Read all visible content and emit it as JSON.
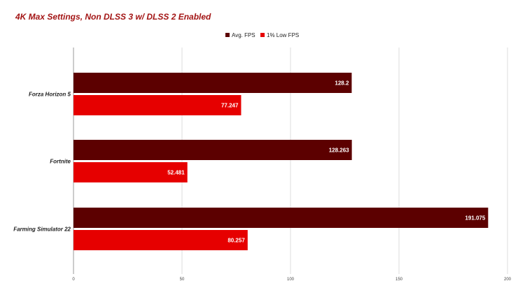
{
  "chart_data": {
    "type": "bar",
    "orientation": "horizontal",
    "title": "4K Max Settings, Non DLSS 3 w/ DLSS 2 Enabled",
    "categories": [
      "Forza Horizon 5",
      "Fortnite",
      "Farming Simulator 22"
    ],
    "series": [
      {
        "name": "Avg. FPS",
        "color": "#5c0000",
        "values": [
          128.2,
          128.263,
          191.075
        ]
      },
      {
        "name": "1% Low FPS",
        "color": "#e60000",
        "values": [
          77.247,
          52.481,
          80.257
        ]
      }
    ],
    "xlim": [
      0,
      200
    ],
    "xticks": [
      "0",
      "50",
      "100",
      "150",
      "200"
    ],
    "grid": true,
    "legend_position": "top-center"
  }
}
